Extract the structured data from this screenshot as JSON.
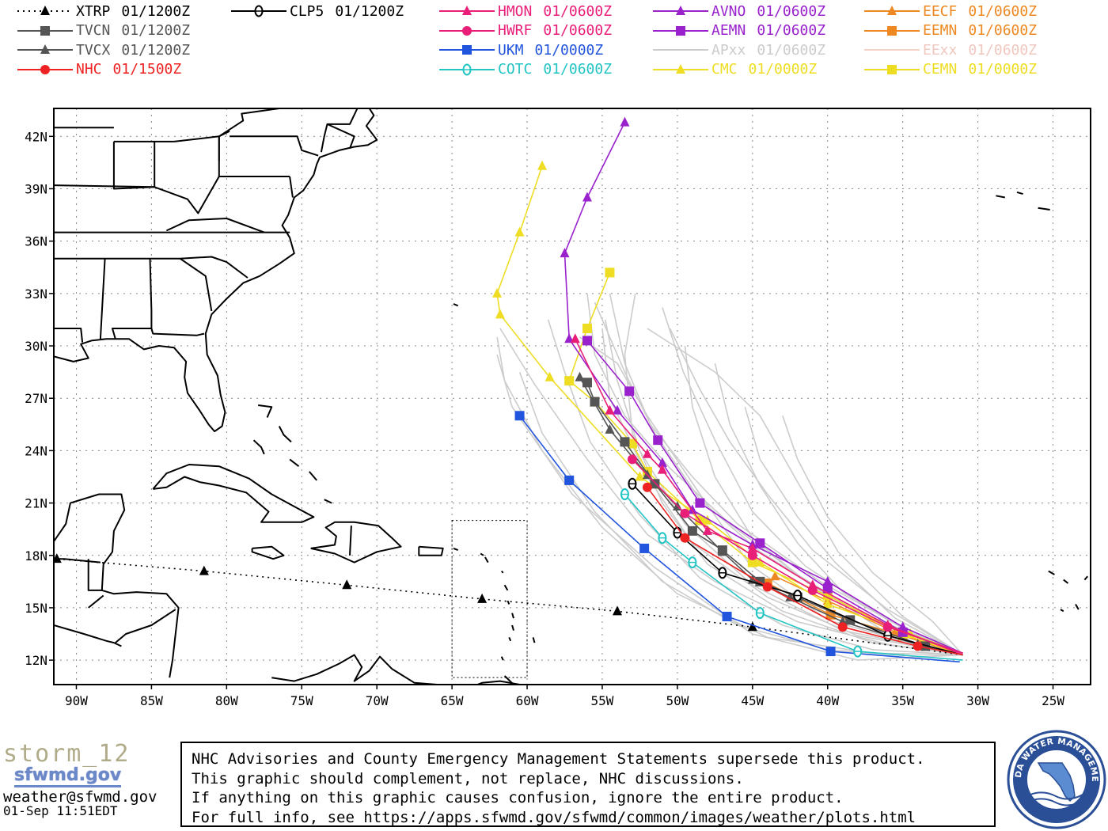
{
  "legend": [
    {
      "id": "xtrp",
      "name": "XTRP",
      "time": "01/1200Z",
      "color": "#000000",
      "marker": "triangle",
      "dashed": true,
      "labelColor": "#000000"
    },
    {
      "id": "tvcn",
      "name": "TVCN",
      "time": "01/1200Z",
      "color": "#555555",
      "marker": "square",
      "labelColor": "#555555"
    },
    {
      "id": "tvcx",
      "name": "TVCX",
      "time": "01/1200Z",
      "color": "#555555",
      "marker": "triangle",
      "labelColor": "#555555"
    },
    {
      "id": "nhc",
      "name": "NHC",
      "time": "01/1500Z",
      "color": "#ee2222",
      "marker": "circle",
      "labelColor": "#ee2222"
    },
    {
      "id": "clp5",
      "name": "CLP5",
      "time": "01/1200Z",
      "color": "#000000",
      "marker": "zero",
      "labelColor": "#000000"
    },
    {
      "id": "hmon",
      "name": "HMON",
      "time": "01/0600Z",
      "color": "#e81e78",
      "marker": "triangle",
      "labelColor": "#e81e78"
    },
    {
      "id": "hwrf",
      "name": "HWRF",
      "time": "01/0600Z",
      "color": "#e81e78",
      "marker": "circle",
      "labelColor": "#e81e78"
    },
    {
      "id": "ukm",
      "name": "UKM",
      "time": "01/0000Z",
      "color": "#2255dd",
      "marker": "square",
      "labelColor": "#2255dd"
    },
    {
      "id": "cotc",
      "name": "COTC",
      "time": "01/0600Z",
      "color": "#22c4c4",
      "marker": "zero",
      "labelColor": "#22c4c4"
    },
    {
      "id": "avno",
      "name": "AVNO",
      "time": "01/0600Z",
      "color": "#9922cc",
      "marker": "triangle",
      "labelColor": "#9922cc"
    },
    {
      "id": "aemn",
      "name": "AEMN",
      "time": "01/0600Z",
      "color": "#9922cc",
      "marker": "square",
      "labelColor": "#9922cc"
    },
    {
      "id": "apxx",
      "name": "APxx",
      "time": "01/0600Z",
      "color": "#cccccc",
      "marker": "none",
      "labelColor": "#cccccc"
    },
    {
      "id": "cmc",
      "name": "CMC",
      "time": "01/0000Z",
      "color": "#eedd22",
      "marker": "triangle",
      "labelColor": "#eedd22"
    },
    {
      "id": "eecf",
      "name": "EECF",
      "time": "01/0600Z",
      "color": "#ee8822",
      "marker": "triangle",
      "labelColor": "#ee8822"
    },
    {
      "id": "eemn",
      "name": "EEMN",
      "time": "01/0600Z",
      "color": "#ee8822",
      "marker": "square",
      "labelColor": "#ee8822"
    },
    {
      "id": "eexx",
      "name": "EExx",
      "time": "01/0600Z",
      "color": "#f5d2c8",
      "marker": "none",
      "labelColor": "#f0c8c0"
    },
    {
      "id": "cemn",
      "name": "CEMN",
      "time": "01/0000Z",
      "color": "#eedd22",
      "marker": "square",
      "labelColor": "#eedd22"
    }
  ],
  "axes": {
    "lon_ticks": [
      "90W",
      "85W",
      "80W",
      "75W",
      "70W",
      "65W",
      "60W",
      "55W",
      "50W",
      "45W",
      "40W",
      "35W",
      "30W",
      "25W"
    ],
    "lat_ticks": [
      "12N",
      "15N",
      "18N",
      "21N",
      "24N",
      "27N",
      "30N",
      "33N",
      "36N",
      "39N",
      "42N"
    ],
    "lon_range": [
      -91.5,
      -22.5
    ],
    "lat_range": [
      10.6,
      43.6
    ],
    "grid": true
  },
  "tracks": {
    "xtrp": [
      [
        -31,
        12.3
      ],
      [
        -45,
        13.9
      ],
      [
        -54,
        14.8
      ],
      [
        -63,
        15.5
      ],
      [
        -72,
        16.3
      ],
      [
        -81.5,
        17.1
      ],
      [
        -91.3,
        17.8
      ]
    ],
    "clp5": [
      [
        -31,
        12.3
      ],
      [
        -36,
        13.4
      ],
      [
        -42,
        15.7
      ],
      [
        -47,
        17.0
      ],
      [
        -50,
        19.3
      ],
      [
        -53,
        22.1
      ]
    ],
    "tvcn": [
      [
        -31,
        12.3
      ],
      [
        -33.5,
        12.8
      ],
      [
        -38.5,
        14.3
      ],
      [
        -42,
        15.6
      ],
      [
        -44.5,
        16.5
      ],
      [
        -47,
        18.3
      ],
      [
        -49,
        19.4
      ],
      [
        -51.5,
        22.1
      ],
      [
        -53.5,
        24.5
      ],
      [
        -55.5,
        26.8
      ],
      [
        -56,
        27.9
      ]
    ],
    "tvcx": [
      [
        -31,
        12.3
      ],
      [
        -34,
        12.9
      ],
      [
        -39,
        14.2
      ],
      [
        -42.5,
        15.6
      ],
      [
        -45,
        16.6
      ],
      [
        -47,
        18.2
      ],
      [
        -50,
        20.8
      ],
      [
        -52,
        22.6
      ],
      [
        -54.5,
        25.2
      ],
      [
        -56.5,
        28.2
      ]
    ],
    "nhc": [
      [
        -31,
        12.3
      ],
      [
        -34,
        12.8
      ],
      [
        -39,
        13.9
      ],
      [
        -44,
        16.2
      ],
      [
        -49.5,
        19.0
      ],
      [
        -52,
        21.9
      ]
    ],
    "hmon": [
      [
        -31,
        12.3
      ],
      [
        -36,
        14.0
      ],
      [
        -41,
        16.3
      ],
      [
        -45,
        18.4
      ],
      [
        -48,
        19.4
      ],
      [
        -51,
        22.9
      ],
      [
        -52,
        23.8
      ],
      [
        -54.5,
        26.3
      ],
      [
        -56.8,
        30.4
      ]
    ],
    "hwrf": [
      [
        -31,
        12.4
      ],
      [
        -36,
        13.9
      ],
      [
        -41,
        16.0
      ],
      [
        -45,
        18.0
      ],
      [
        -49.5,
        20.4
      ],
      [
        -53,
        23.5
      ]
    ],
    "ukm": [
      [
        -31.2,
        11.9
      ],
      [
        -39.8,
        12.5
      ],
      [
        -46.7,
        14.5
      ],
      [
        -52.2,
        18.4
      ],
      [
        -57.2,
        22.3
      ],
      [
        -60.5,
        26.0
      ]
    ],
    "cotc": [
      [
        -31,
        12.0
      ],
      [
        -38,
        12.5
      ],
      [
        -44.5,
        14.7
      ],
      [
        -49,
        17.6
      ],
      [
        -51,
        19.0
      ],
      [
        -53.5,
        21.5
      ]
    ],
    "avno": [
      [
        -31,
        12.4
      ],
      [
        -35,
        13.9
      ],
      [
        -40,
        16.5
      ],
      [
        -45,
        18.6
      ],
      [
        -49,
        20.6
      ],
      [
        -51,
        23.3
      ],
      [
        -54,
        26.3
      ],
      [
        -57.2,
        30.4
      ],
      [
        -57.5,
        35.3
      ],
      [
        -56,
        38.5
      ],
      [
        -53.5,
        42.8
      ]
    ],
    "aemn": [
      [
        -31,
        12.4
      ],
      [
        -35,
        13.6
      ],
      [
        -40,
        16.1
      ],
      [
        -44.5,
        18.7
      ],
      [
        -48.5,
        21.0
      ],
      [
        -51.3,
        24.6
      ],
      [
        -53.2,
        27.4
      ],
      [
        -56,
        30.3
      ]
    ],
    "cmc": [
      [
        -31,
        12.4
      ],
      [
        -34.5,
        13.5
      ],
      [
        -40,
        15.2
      ],
      [
        -44.5,
        17.6
      ],
      [
        -48,
        20.0
      ],
      [
        -52.5,
        22.5
      ],
      [
        -58.5,
        28.2
      ],
      [
        -61.8,
        31.8
      ],
      [
        -62,
        33.0
      ],
      [
        -60.5,
        36.5
      ],
      [
        -59,
        40.3
      ]
    ],
    "cemn": [
      [
        -31,
        12.3
      ],
      [
        -35,
        13.5
      ],
      [
        -40,
        15.7
      ],
      [
        -45,
        17.6
      ],
      [
        -48.5,
        20.0
      ],
      [
        -52,
        22.8
      ],
      [
        -53,
        24.4
      ],
      [
        -55.5,
        26.8
      ],
      [
        -57.2,
        28.0
      ],
      [
        -56,
        31
      ],
      [
        -54.5,
        34.2
      ]
    ],
    "eecf": [
      [
        -31,
        12.4
      ],
      [
        -35.5,
        13.6
      ],
      [
        -40,
        15.4
      ],
      [
        -43.5,
        16.8
      ]
    ],
    "eemn": [
      [
        -31,
        12.3
      ],
      [
        -35,
        13.4
      ],
      [
        -39.8,
        14.6
      ],
      [
        -44,
        16.4
      ]
    ]
  },
  "apxx_tracks": [
    [
      [
        -31,
        12.3
      ],
      [
        -38,
        13.4
      ],
      [
        -44,
        15.6
      ],
      [
        -49,
        18.7
      ],
      [
        -52,
        22.5
      ],
      [
        -54.5,
        27
      ],
      [
        -55,
        31
      ]
    ],
    [
      [
        -31,
        12.3
      ],
      [
        -37,
        13.0
      ],
      [
        -43,
        14.8
      ],
      [
        -48,
        17.5
      ],
      [
        -51,
        21.0
      ],
      [
        -53,
        25
      ],
      [
        -53.5,
        29.5
      ],
      [
        -52.8,
        33
      ]
    ],
    [
      [
        -31,
        12.3
      ],
      [
        -39,
        13.7
      ],
      [
        -45,
        16.3
      ],
      [
        -49.5,
        19.8
      ],
      [
        -52.5,
        24
      ],
      [
        -54,
        28
      ],
      [
        -54.8,
        31.5
      ]
    ],
    [
      [
        -31,
        12.3
      ],
      [
        -37,
        12.6
      ],
      [
        -43,
        14.0
      ],
      [
        -48.5,
        16.7
      ],
      [
        -52.5,
        20.3
      ],
      [
        -55.8,
        24.5
      ],
      [
        -57.5,
        28.5
      ],
      [
        -58.6,
        31.5
      ]
    ],
    [
      [
        -31,
        12.3
      ],
      [
        -36,
        12.9
      ],
      [
        -42,
        14.2
      ],
      [
        -47.5,
        16.5
      ],
      [
        -52,
        19.2
      ],
      [
        -56,
        23.5
      ],
      [
        -59.5,
        27.8
      ],
      [
        -61.8,
        31
      ]
    ],
    [
      [
        -31,
        12.3
      ],
      [
        -35,
        13.5
      ],
      [
        -41,
        16.2
      ],
      [
        -45,
        19.0
      ],
      [
        -47.5,
        22.5
      ],
      [
        -49,
        26.5
      ],
      [
        -49.5,
        30.0
      ]
    ],
    [
      [
        -31,
        12.3
      ],
      [
        -34,
        13.3
      ],
      [
        -39,
        15.9
      ],
      [
        -42,
        18.7
      ],
      [
        -44.5,
        22.0
      ],
      [
        -46.5,
        25.5
      ],
      [
        -47.5,
        29
      ]
    ],
    [
      [
        -31,
        12.3
      ],
      [
        -36,
        14.3
      ],
      [
        -41.5,
        17.4
      ],
      [
        -45,
        20.5
      ],
      [
        -47.5,
        24.6
      ],
      [
        -49.6,
        28.5
      ],
      [
        -51,
        32.2
      ]
    ],
    [
      [
        -31,
        12.3
      ],
      [
        -35.5,
        14.4
      ],
      [
        -39.5,
        17.6
      ],
      [
        -42,
        20.2
      ],
      [
        -44.5,
        23.5
      ],
      [
        -45.5,
        26.5
      ]
    ],
    [
      [
        -31,
        12.3
      ],
      [
        -37,
        12.4
      ],
      [
        -44,
        13.3
      ],
      [
        -50,
        15.8
      ],
      [
        -55,
        19.6
      ],
      [
        -59,
        24
      ],
      [
        -61.5,
        28.0
      ],
      [
        -62,
        30.5
      ]
    ],
    [
      [
        -31,
        12.3
      ],
      [
        -34,
        12.2
      ],
      [
        -40,
        12.6
      ],
      [
        -46,
        14.0
      ],
      [
        -51,
        16.5
      ],
      [
        -55.5,
        20.5
      ],
      [
        -59,
        25.0
      ],
      [
        -60.5,
        28.5
      ]
    ],
    [
      [
        -31,
        12.3
      ],
      [
        -38,
        12.0
      ],
      [
        -45,
        13.5
      ],
      [
        -51.5,
        17.3
      ],
      [
        -57,
        21.5
      ],
      [
        -61,
        26.5
      ],
      [
        -62,
        29.5
      ]
    ],
    [
      [
        -31,
        12.3
      ],
      [
        -36.5,
        13.8
      ],
      [
        -42,
        16.9
      ],
      [
        -46.5,
        19.8
      ],
      [
        -50.5,
        23
      ],
      [
        -53.5,
        26
      ],
      [
        -55.5,
        29.5
      ],
      [
        -56,
        33
      ]
    ],
    [
      [
        -31,
        12.3
      ],
      [
        -35,
        14.5
      ],
      [
        -39.3,
        18.2
      ],
      [
        -42,
        22.2
      ],
      [
        -44.5,
        26.0
      ],
      [
        -47.5,
        28.5
      ],
      [
        -52,
        31.0
      ]
    ],
    [
      [
        -31,
        12.3
      ],
      [
        -34.5,
        13.6
      ],
      [
        -40.5,
        16.5
      ],
      [
        -46,
        19.8
      ],
      [
        -49,
        22.5
      ],
      [
        -51.8,
        25.5
      ],
      [
        -53.5,
        29.0
      ],
      [
        -54.5,
        33.0
      ]
    ],
    [
      [
        -31,
        12.3
      ],
      [
        -38,
        14.8
      ],
      [
        -44.5,
        18.2
      ],
      [
        -48.5,
        21.2
      ],
      [
        -51.5,
        25
      ],
      [
        -53.5,
        28.5
      ],
      [
        -55.5,
        32.5
      ]
    ],
    [
      [
        -31,
        12.3
      ],
      [
        -36,
        14.9
      ],
      [
        -41,
        18.3
      ],
      [
        -44,
        21.5
      ],
      [
        -46.5,
        24.5
      ],
      [
        -48.5,
        27.5
      ],
      [
        -50.5,
        31.0
      ]
    ],
    [
      [
        -31,
        12.3
      ],
      [
        -33,
        14.2
      ],
      [
        -37,
        17.0
      ],
      [
        -40,
        20.2
      ],
      [
        -42,
        23.5
      ],
      [
        -43,
        26.0
      ]
    ],
    [
      [
        -31,
        12.3
      ],
      [
        -35,
        13.1
      ],
      [
        -40,
        14.3
      ],
      [
        -45.2,
        17.5
      ],
      [
        -48.5,
        21.5
      ],
      [
        -52,
        26.0
      ],
      [
        -54,
        29.0
      ],
      [
        -56.5,
        30.5
      ]
    ]
  ],
  "sector": {
    "lon": [
      -65,
      -60
    ],
    "lat": [
      11,
      20
    ]
  },
  "brand": {
    "title": "storm_12",
    "site": "sfwmd.gov",
    "email": "weather@sfwmd.gov",
    "timestamp": "01-Sep 11:51EDT"
  },
  "disclaimer": {
    "line1": "NHC Advisories and County Emergency Management Statements supersede this product.",
    "line2": "This graphic should complement, not replace, NHC discussions.",
    "line3": "If anything on this graphic causes confusion, ignore the entire product.",
    "line4": "For full info, see  https://apps.sfwmd.gov/sfwmd/common/images/weather/plots.html"
  },
  "seal": {
    "text": "SOUTH FLORIDA WATER MANAGEMENT DISTRICT",
    "ring_color": "#2a4f96",
    "fill_color": "#5b8bd0"
  }
}
